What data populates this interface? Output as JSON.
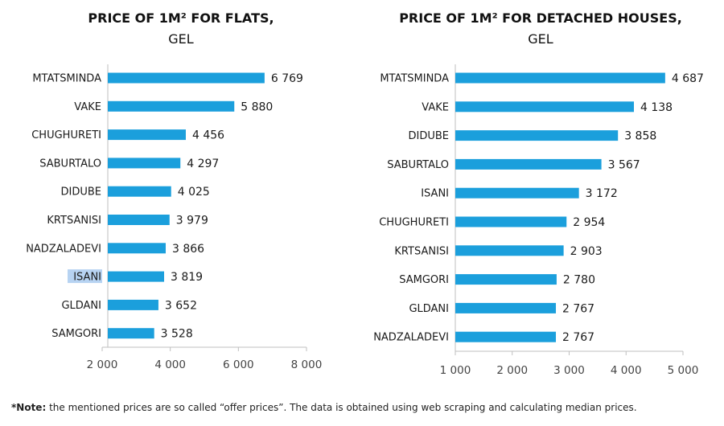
{
  "chart_data": [
    {
      "type": "bar",
      "orientation": "horizontal",
      "title": "PRICE OF 1M² FOR FLATS,",
      "subtitle": "GEL",
      "categories": [
        "MTATSMINDA",
        "VAKE",
        "CHUGHURETI",
        "SABURTALO",
        "DIDUBE",
        "KRTSANISI",
        "NADZALADEVI",
        "ISANI",
        "GLDANI",
        "SAMGORI"
      ],
      "values": [
        6769,
        5880,
        4456,
        4297,
        4025,
        3979,
        3866,
        3819,
        3652,
        3528
      ],
      "value_labels": [
        "6 769",
        "5 880",
        "4 456",
        "4 297",
        "4 025",
        "3 979",
        "3 866",
        "3 819",
        "3 652",
        "3 528"
      ],
      "xlim": [
        2000,
        8000
      ],
      "ticks": [
        2000,
        4000,
        6000,
        8000
      ],
      "tick_labels": [
        "2 000",
        "4 000",
        "6 000",
        "8 000"
      ],
      "highlighted_category": "ISANI",
      "bar_color": "#1b9fdc",
      "grid": false
    },
    {
      "type": "bar",
      "orientation": "horizontal",
      "title": "PRICE OF 1M² FOR DETACHED HOUSES,",
      "subtitle": "GEL",
      "categories": [
        "MTATSMINDA",
        "VAKE",
        "DIDUBE",
        "SABURTALO",
        "ISANI",
        "CHUGHURETI",
        "KRTSANISI",
        "SAMGORI",
        "GLDANI",
        "NADZALADEVI"
      ],
      "values": [
        4687,
        4138,
        3858,
        3567,
        3172,
        2954,
        2903,
        2780,
        2767,
        2767
      ],
      "value_labels": [
        "4 687",
        "4 138",
        "3 858",
        "3 567",
        "3 172",
        "2 954",
        "2 903",
        "2 780",
        "2 767",
        "2 767"
      ],
      "xlim": [
        1000,
        5000
      ],
      "ticks": [
        1000,
        2000,
        3000,
        4000,
        5000
      ],
      "tick_labels": [
        "1 000",
        "2 000",
        "3 000",
        "4 000",
        "5 000"
      ],
      "bar_color": "#1b9fdc",
      "grid": false
    }
  ],
  "note": {
    "bold": "*Note:",
    "text": " the mentioned prices are so called “offer prices”. The data is obtained using web scraping and calculating median prices."
  }
}
